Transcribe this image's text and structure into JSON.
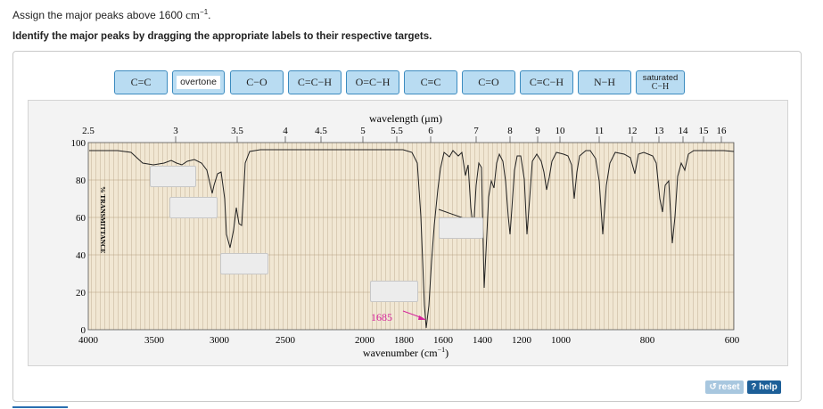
{
  "question": {
    "line1_prefix": "Assign the major peaks above 1600 ",
    "line1_unit": "cm",
    "line1_exp": "−1",
    "line1_suffix": ".",
    "instruction": "Identify the major peaks by dragging the appropriate labels to their respective targets."
  },
  "labels": [
    "C=C",
    "overtone",
    "C−O",
    "C=C−H",
    "O=C−H",
    "C≡C",
    "C=O",
    "C≡C−H",
    "N−H"
  ],
  "label_saturated": {
    "line1": "saturated",
    "line2": "C−H"
  },
  "spectrum": {
    "top_axis_title": "wavelength (μm)",
    "top_ticks": [
      "2.5",
      "3",
      "3.5",
      "4",
      "4.5",
      "5",
      "5.5",
      "6",
      "7",
      "8",
      "9",
      "10",
      "11",
      "12",
      "13",
      "14",
      "15",
      "16"
    ],
    "bottom_axis_title": "wavenumber (cm",
    "bottom_axis_title_exp": "−1",
    "bottom_axis_title_close": ")",
    "bottom_ticks": [
      "4000",
      "3500",
      "3000",
      "2500",
      "2000",
      "1800",
      "1600",
      "1400",
      "1200",
      "1000",
      "800",
      "600"
    ],
    "y_ticks": [
      "100",
      "80",
      "60",
      "40",
      "20",
      "0"
    ],
    "y_axis_title": "% TRANSMITTANCE",
    "annotation": "1685",
    "annotation_color": "#d6249b"
  },
  "buttons": {
    "reset": "reset",
    "help": "? help"
  },
  "colors": {
    "chip_fill": "#b9dcf2",
    "chip_border": "#3c8bbf",
    "help": "#1d5f98"
  }
}
